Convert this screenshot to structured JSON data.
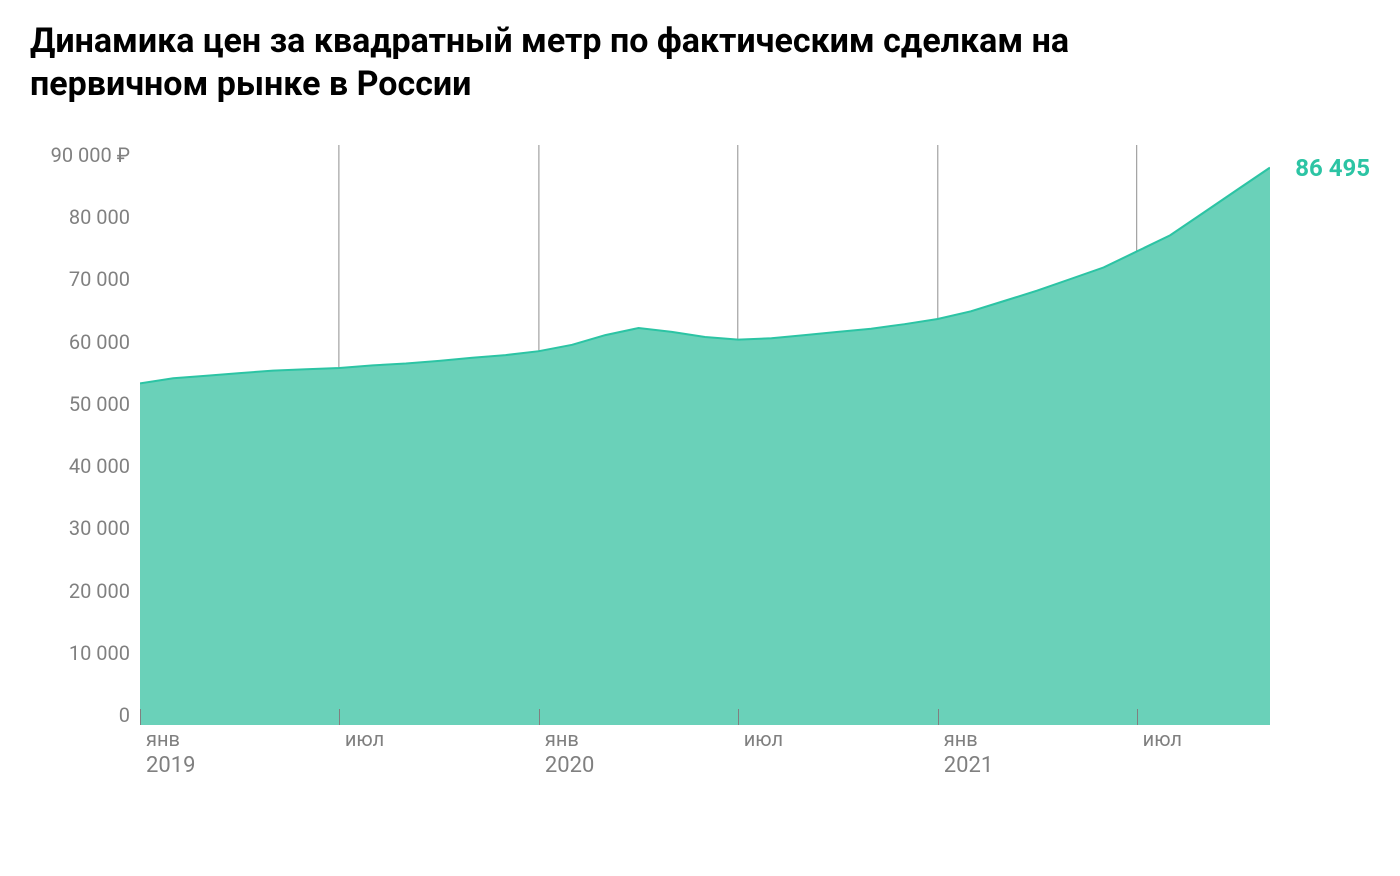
{
  "chart": {
    "type": "area",
    "title": "Динамика цен за квадратный метр по фактическим сделкам на первичном рынке в России",
    "title_fontsize": 34,
    "title_fontweight": 700,
    "title_color": "#000000",
    "background_color": "#ffffff",
    "series": {
      "fill_color": "#6ad1b9",
      "stroke_color": "#2cc4a4",
      "stroke_width": 2,
      "values": [
        53000,
        53800,
        54200,
        54600,
        55000,
        55200,
        55400,
        55800,
        56100,
        56500,
        57000,
        57400,
        58000,
        59000,
        60500,
        61600,
        61000,
        60200,
        59800,
        60000,
        60500,
        61000,
        61500,
        62200,
        63000,
        64200,
        65800,
        67400,
        69200,
        71000,
        73500,
        76000,
        79500,
        83000,
        86495
      ],
      "x_count": 35
    },
    "y_axis": {
      "min": 0,
      "max": 90000,
      "tick_step": 10000,
      "ticks": [
        "90 000 ₽",
        "80 000",
        "70 000",
        "60 000",
        "50 000",
        "40 000",
        "30 000",
        "20 000",
        "10 000",
        "0"
      ],
      "label_fontsize": 20,
      "label_color": "#808080"
    },
    "x_axis": {
      "ticks": [
        {
          "pos": 0.0,
          "month": "янв",
          "year": "2019"
        },
        {
          "pos": 0.176,
          "month": "июл",
          "year": ""
        },
        {
          "pos": 0.353,
          "month": "янв",
          "year": "2020"
        },
        {
          "pos": 0.529,
          "month": "июл",
          "year": ""
        },
        {
          "pos": 0.706,
          "month": "янв",
          "year": "2021"
        },
        {
          "pos": 0.882,
          "month": "июл",
          "year": ""
        }
      ],
      "gridline_color": "#9c9c9c",
      "label_fontsize": 20,
      "label_color": "#808080"
    },
    "end_label": {
      "text": "86 495",
      "color": "#2cc4a4",
      "fontsize": 24,
      "fontweight": 700
    }
  }
}
